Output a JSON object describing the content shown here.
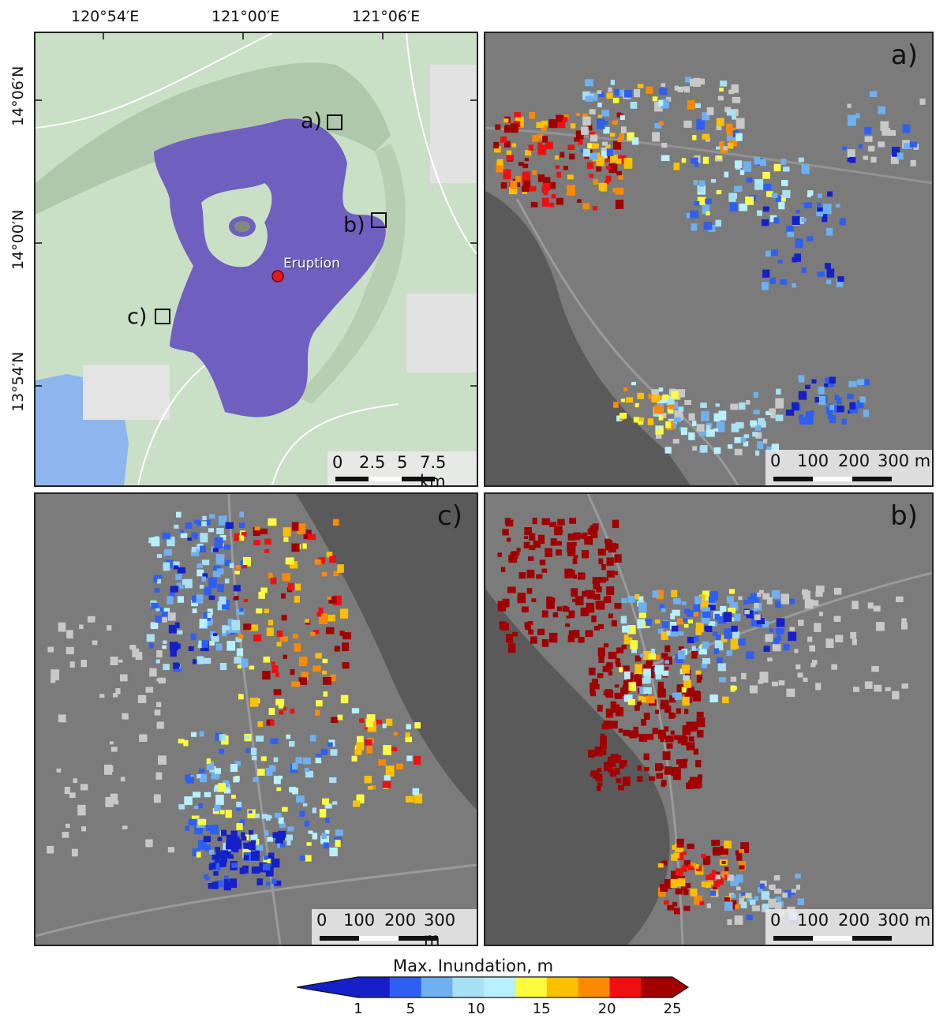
{
  "overview": {
    "lon_ticks": [
      "120°54′E",
      "121°00′E",
      "121°06′E"
    ],
    "lat_ticks": [
      "14°06′N",
      "14°00′N",
      "13°54′N"
    ],
    "lake_color": "#6f5fbf",
    "eruption_label": "Eruption",
    "inset_labels": [
      "a)",
      "b)",
      "c)"
    ],
    "scale_labels": [
      "0",
      "2.5",
      "5",
      "7.5 km"
    ]
  },
  "panels": [
    {
      "id": "a",
      "letter": "a)",
      "scale_labels": [
        "0",
        "100",
        "200",
        "300 m"
      ]
    },
    {
      "id": "c",
      "letter": "c)",
      "scale_labels": [
        "0",
        "100",
        "200",
        "300 m"
      ]
    },
    {
      "id": "b",
      "letter": "b)",
      "scale_labels": [
        "0",
        "100",
        "200",
        "300 m"
      ]
    }
  ],
  "colorbar": {
    "title": "Max. Inundation, m",
    "ticks": [
      "1",
      "5",
      "10",
      "15",
      "20",
      "25"
    ],
    "tick_values": [
      1,
      5,
      10,
      15,
      20,
      25
    ],
    "min": 1,
    "max": 25,
    "colors": [
      "#1520c8",
      "#2f5ff0",
      "#6fb0f0",
      "#a8e0f4",
      "#b8f0ff",
      "#fbfb40",
      "#fbc000",
      "#fb8a00",
      "#ee1010",
      "#a00000"
    ]
  }
}
